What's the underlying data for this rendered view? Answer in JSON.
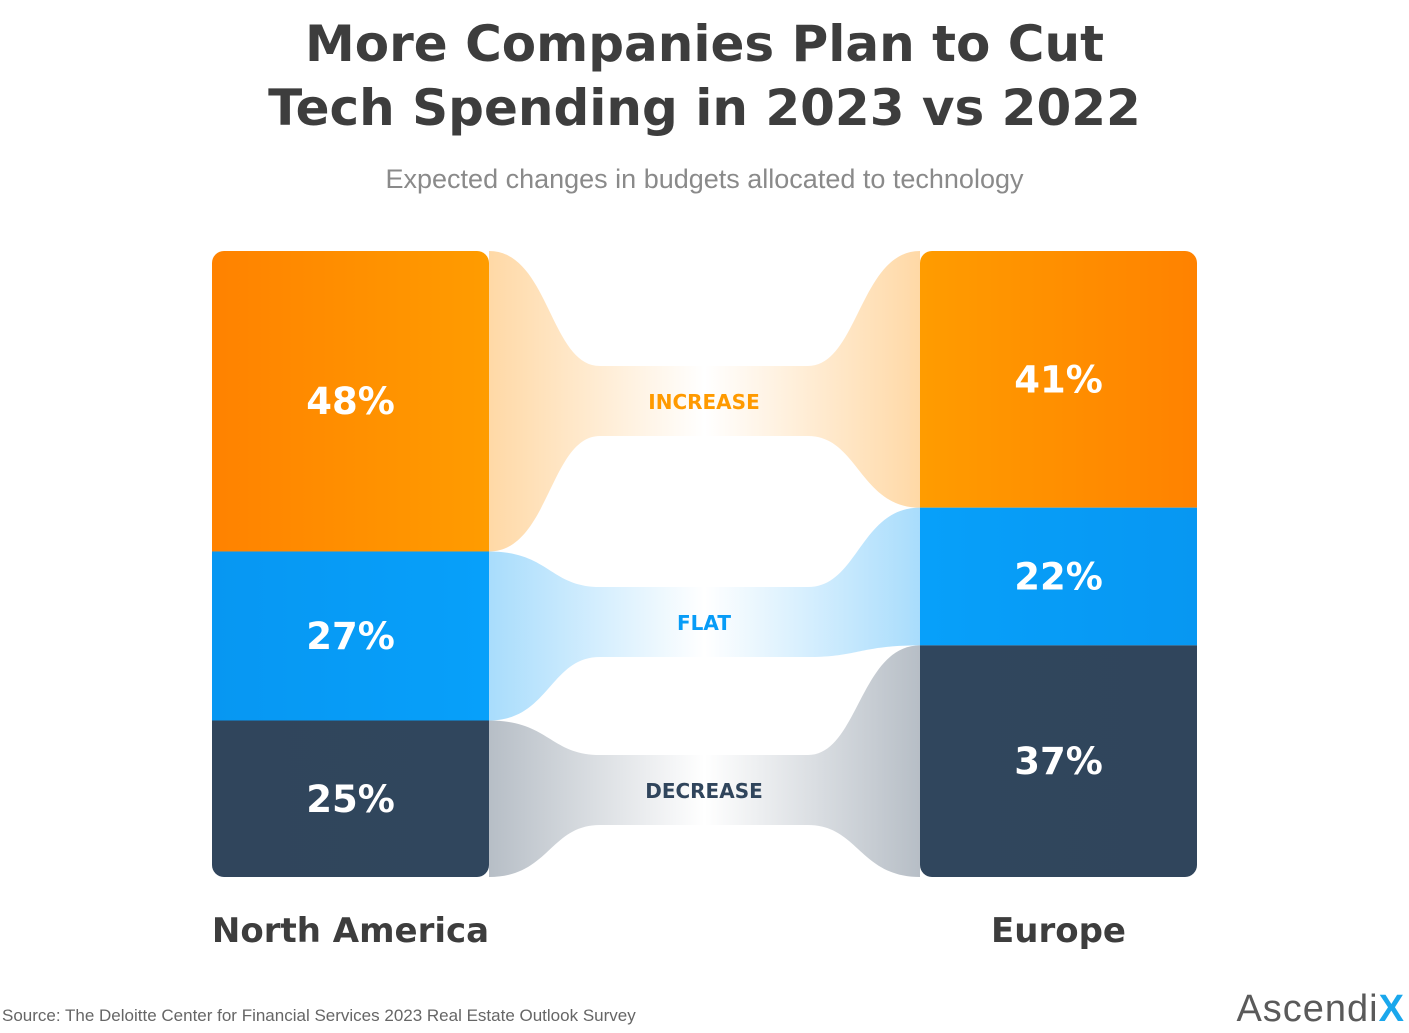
{
  "chart_data": {
    "type": "sankey",
    "title": "More Companies Plan to Cut Tech Spending in 2023 vs 2022",
    "subtitle": "Expected changes in budgets allocated to technology",
    "columns": [
      "North America",
      "Europe"
    ],
    "categories": [
      "INCREASE",
      "FLAT",
      "DECREASE"
    ],
    "series": [
      {
        "name": "North America",
        "values": [
          48,
          27,
          25
        ],
        "labels": [
          "48%",
          "27%",
          "25%"
        ]
      },
      {
        "name": "Europe",
        "values": [
          41,
          22,
          37
        ],
        "labels": [
          "41%",
          "22%",
          "37%"
        ]
      }
    ],
    "colors": {
      "INCREASE": "#ff9100",
      "FLAT": "#079cf7",
      "DECREASE": "#30455c"
    },
    "label_colors": {
      "INCREASE": "#ff9a00",
      "FLAT": "#079cf7",
      "DECREASE": "#30455c"
    }
  },
  "source": "Source:  The Deloitte Center for Financial Services 2023 Real Estate Outlook Survey",
  "logo": {
    "text": "Ascendi",
    "accent": "X"
  }
}
